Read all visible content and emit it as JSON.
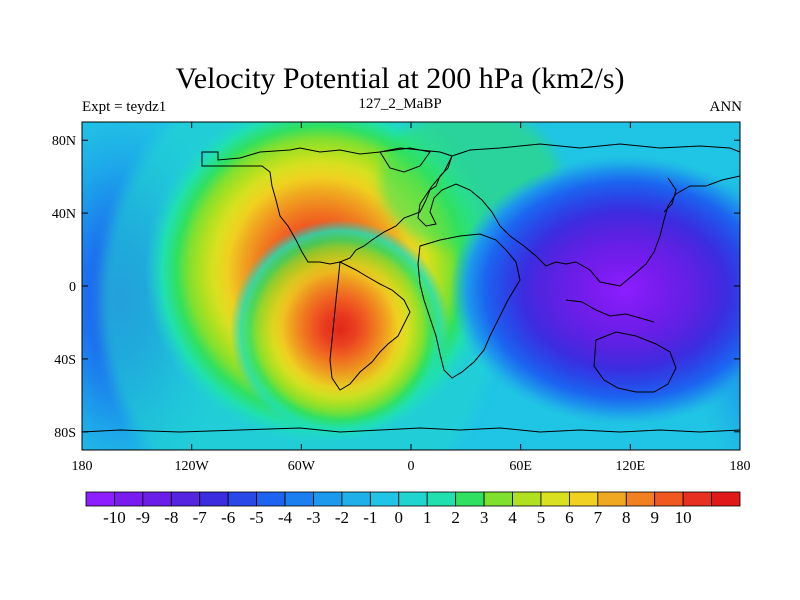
{
  "header": {
    "title": "Velocity Potential at 200 hPa (km2/s)",
    "left": "Expt = teydz1",
    "center": "127_2_MaBP",
    "right": "ANN"
  },
  "map": {
    "lon_ticks": [
      "180",
      "120W",
      "60W",
      "0",
      "60E",
      "120E",
      "180"
    ],
    "lat_ticks": [
      "80N",
      "40N",
      "0",
      "40S",
      "80S"
    ]
  },
  "colorbar": {
    "labels": [
      "-10",
      "-9",
      "-8",
      "-7",
      "-6",
      "-5",
      "-4",
      "-3",
      "-2",
      "-1",
      "0",
      "1",
      "2",
      "3",
      "4",
      "5",
      "6",
      "7",
      "8",
      "9",
      "10"
    ],
    "colors": [
      "#8c1eff",
      "#7a1cf0",
      "#6a1ee8",
      "#5424e0",
      "#3c2ce0",
      "#2848e8",
      "#1c64f0",
      "#1c7ff0",
      "#1c98ec",
      "#20b0e8",
      "#20c4e4",
      "#20d4d0",
      "#20e0b0",
      "#30e060",
      "#80e030",
      "#b0e020",
      "#d8e020",
      "#f0d020",
      "#f0a820",
      "#f08020",
      "#f05820",
      "#e83020",
      "#e01818"
    ]
  }
}
